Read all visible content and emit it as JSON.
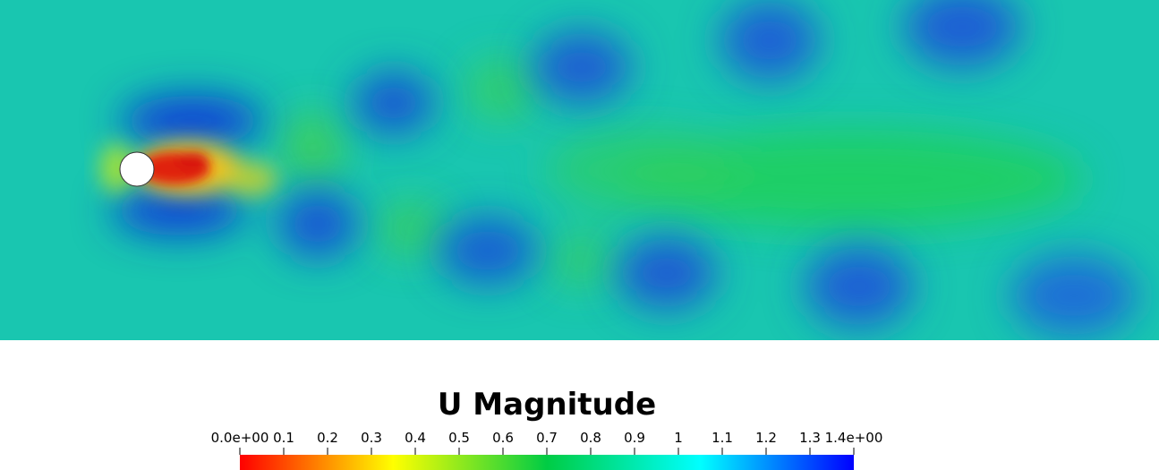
{
  "field": {
    "title": "U Magnitude",
    "range_min": 0.0,
    "range_max": 1.4,
    "colormap": [
      "#ff0000",
      "#ffff00",
      "#00cc44",
      "#00ffff",
      "#0000ff"
    ],
    "obstacle": "cylinder"
  },
  "legend": {
    "ticks": [
      {
        "value": 0.0,
        "label": "0.0e+00"
      },
      {
        "value": 0.1,
        "label": "0.1"
      },
      {
        "value": 0.2,
        "label": "0.2"
      },
      {
        "value": 0.3,
        "label": "0.3"
      },
      {
        "value": 0.4,
        "label": "0.4"
      },
      {
        "value": 0.5,
        "label": "0.5"
      },
      {
        "value": 0.6,
        "label": "0.6"
      },
      {
        "value": 0.7,
        "label": "0.7"
      },
      {
        "value": 0.8,
        "label": "0.8"
      },
      {
        "value": 0.9,
        "label": "0.9"
      },
      {
        "value": 1.0,
        "label": "1"
      },
      {
        "value": 1.1,
        "label": "1.1"
      },
      {
        "value": 1.2,
        "label": "1.2"
      },
      {
        "value": 1.3,
        "label": "1.3"
      },
      {
        "value": 1.4,
        "label": "1.4e+00"
      }
    ]
  }
}
